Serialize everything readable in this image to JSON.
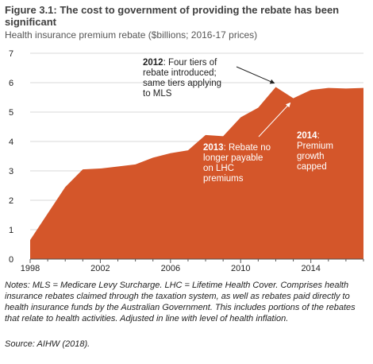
{
  "figure": {
    "title": "Figure 3.1: The cost to government of providing the rebate has been significant",
    "subtitle": "Health insurance premium rebate ($billions; 2016-17 prices)",
    "notes": "Notes: MLS = Medicare Levy Surcharge. LHC = Lifetime Health Cover. Comprises health insurance rebates claimed through the taxation system, as well as rebates paid directly to health insurance funds by the Australian Government. This includes portions of the rebates that relate to health activities. Adjusted in line with level of health inflation.",
    "source": "Source: AIHW (2018)."
  },
  "chart_data": {
    "type": "area",
    "x": [
      1998,
      1999,
      2000,
      2001,
      2002,
      2003,
      2004,
      2005,
      2006,
      2007,
      2008,
      2009,
      2010,
      2011,
      2012,
      2013,
      2014,
      2015,
      2016,
      2017
    ],
    "series": [
      {
        "values": [
          0.65,
          1.55,
          2.45,
          3.05,
          3.08,
          3.15,
          3.22,
          3.45,
          3.6,
          3.7,
          4.22,
          4.18,
          4.82,
          5.15,
          5.85,
          5.47,
          5.75,
          5.82,
          5.8,
          5.82
        ]
      }
    ],
    "xlim": [
      1998,
      2017
    ],
    "ylim": [
      0,
      7
    ],
    "xticks": [
      "1998",
      "2002",
      "2006",
      "2010",
      "2014"
    ],
    "xtick_values": [
      1998,
      2002,
      2006,
      2010,
      2014
    ],
    "yticks": [
      "0",
      "1",
      "2",
      "3",
      "4",
      "5",
      "6",
      "7"
    ],
    "ytick_values": [
      0,
      1,
      2,
      3,
      4,
      5,
      6,
      7
    ],
    "grid": "horizontal",
    "fill_color": "#D4562A",
    "grid_color": "#cccccc",
    "annotations": [
      {
        "bold": "2012",
        "text": ": Four tiers of",
        "lines": [
          "rebate introduced;",
          "same tiers applying",
          "to MLS"
        ],
        "color": "#222222",
        "points_to": [
          2012,
          5.85
        ]
      },
      {
        "bold": "2013",
        "text": ": Rebate no",
        "lines": [
          "longer payable",
          "on LHC",
          "premiums"
        ],
        "color": "#ffffff",
        "points_to": [
          2013,
          5.47
        ]
      },
      {
        "bold": "2014",
        "text": ":",
        "lines": [
          "Premium",
          "growth",
          "capped"
        ],
        "color": "#ffffff"
      }
    ]
  }
}
